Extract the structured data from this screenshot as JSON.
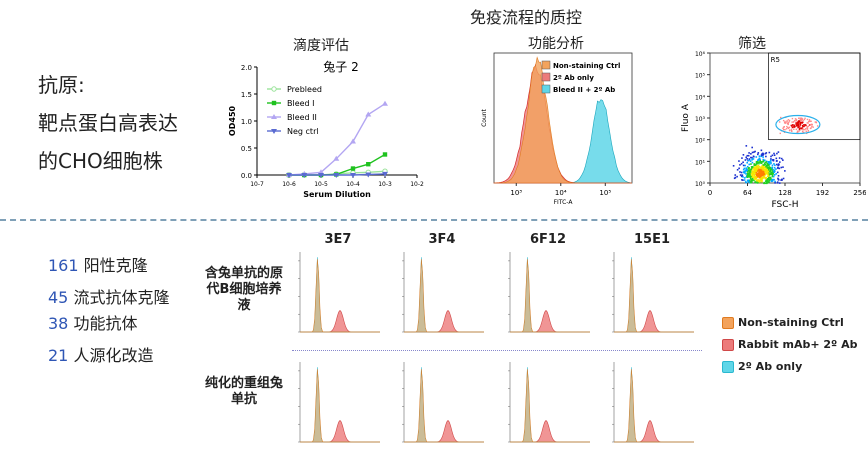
{
  "header": {
    "title": "免疫流程的质控"
  },
  "antigen": {
    "lines": [
      "抗原:",
      "靶点蛋白高表达",
      "的CHO细胞株"
    ]
  },
  "titer": {
    "title": "滴度评估",
    "subtitle": "兔子 2"
  },
  "functional": {
    "title": "功能分析"
  },
  "screening": {
    "title": "筛选"
  },
  "stats": [
    {
      "num": "161",
      "text": " 阳性克隆"
    },
    {
      "num": "45",
      "text": "  流式抗体克隆"
    },
    {
      "num": "38",
      "text": " 功能抗体"
    },
    {
      "num": "21",
      "text": " 人源化改造"
    }
  ],
  "panel_grid": {
    "columns": [
      "3E7",
      "3F4",
      "6F12",
      "15E1"
    ],
    "rows": [
      "含兔单抗的原代B细胞培养液",
      "纯化的重组兔单抗"
    ]
  },
  "legend_panel": {
    "items": [
      {
        "label": "Non-staining Ctrl",
        "color": "#f3a35c"
      },
      {
        "label": "Rabbit mAb+ 2º Ab",
        "color": "#ec7b7b"
      },
      {
        "label": "2º Ab only",
        "color": "#5fd6e8"
      }
    ]
  },
  "chart_data": [
    {
      "type": "line",
      "title": "滴度评估",
      "subtitle": "兔子 2",
      "xlabel": "Serum Dilution",
      "ylabel": "OD450",
      "x_scale": "log",
      "xlim": [
        1e-07,
        0.01
      ],
      "ylim": [
        0,
        2.0
      ],
      "y_ticks": [
        "0.0",
        "0.5",
        "1.0",
        "1.5",
        "2.0"
      ],
      "x_ticks": [
        "10-7",
        "10-6",
        "10-5",
        "10-4",
        "10-3",
        "10-2"
      ],
      "legend_position": "top-left",
      "series": [
        {
          "name": "Prebleed",
          "color": "#9be39b",
          "marker": "circle-open",
          "x": [
            1e-06,
            3e-06,
            1e-05,
            3e-05,
            0.0001,
            0.0003,
            0.001
          ],
          "y": [
            0.0,
            0.0,
            0.0,
            0.02,
            0.04,
            0.05,
            0.07
          ]
        },
        {
          "name": "Bleed I",
          "color": "#1fc21f",
          "marker": "square",
          "x": [
            1e-06,
            3e-06,
            1e-05,
            3e-05,
            0.0001,
            0.0003,
            0.001
          ],
          "y": [
            0.0,
            0.0,
            0.0,
            0.01,
            0.12,
            0.2,
            0.38
          ]
        },
        {
          "name": "Bleed II",
          "color": "#b3a6f2",
          "marker": "triangle",
          "x": [
            1e-06,
            3e-06,
            1e-05,
            3e-05,
            0.0001,
            0.0003,
            0.001
          ],
          "y": [
            0.0,
            0.02,
            0.05,
            0.3,
            0.62,
            1.12,
            1.32
          ]
        },
        {
          "name": "Neg ctrl",
          "color": "#5a6bd1",
          "marker": "down-triangle",
          "x": [
            1e-06,
            3e-06,
            1e-05,
            3e-05,
            0.0001,
            0.0003,
            0.001
          ],
          "y": [
            0.0,
            0.0,
            0.0,
            0.0,
            0.0,
            0.01,
            0.02
          ]
        }
      ]
    },
    {
      "type": "area",
      "title": "功能分析",
      "xlabel": "FITC-A",
      "ylabel": "Count",
      "x_scale": "log",
      "x_ticks": [
        "10³",
        "10⁴",
        "10⁵"
      ],
      "legend_position": "top-right",
      "series": [
        {
          "name": "Non-staining Ctrl",
          "color": "#f3a35c",
          "peak_x": 3000,
          "peak_height": 1.0
        },
        {
          "name": "2º Ab only",
          "color": "#ec7b7b",
          "peak_x": 2800,
          "peak_height": 0.95
        },
        {
          "name": "Bleed II + 2º Ab",
          "color": "#5fd6e8",
          "peak_x": 80000,
          "peak_height": 0.7
        }
      ]
    },
    {
      "type": "scatter",
      "title": "筛选",
      "xlabel": "FSC-H",
      "ylabel": "Fluo A",
      "x_ticks": [
        "0",
        "64",
        "128",
        "192",
        "256"
      ],
      "y_ticks": [
        "10⁰",
        "10¹",
        "10²",
        "10³",
        "10⁴",
        "10⁵",
        "10⁶"
      ],
      "gate": {
        "name": "R5",
        "x_range": [
          100,
          256
        ],
        "y_range": [
          100,
          1000000
        ]
      },
      "populations": [
        {
          "name": "negative",
          "x_center": 84,
          "y_center": 3,
          "spread": "large"
        },
        {
          "name": "positive",
          "x_center": 150,
          "y_center": 500,
          "spread": "small"
        }
      ]
    }
  ]
}
